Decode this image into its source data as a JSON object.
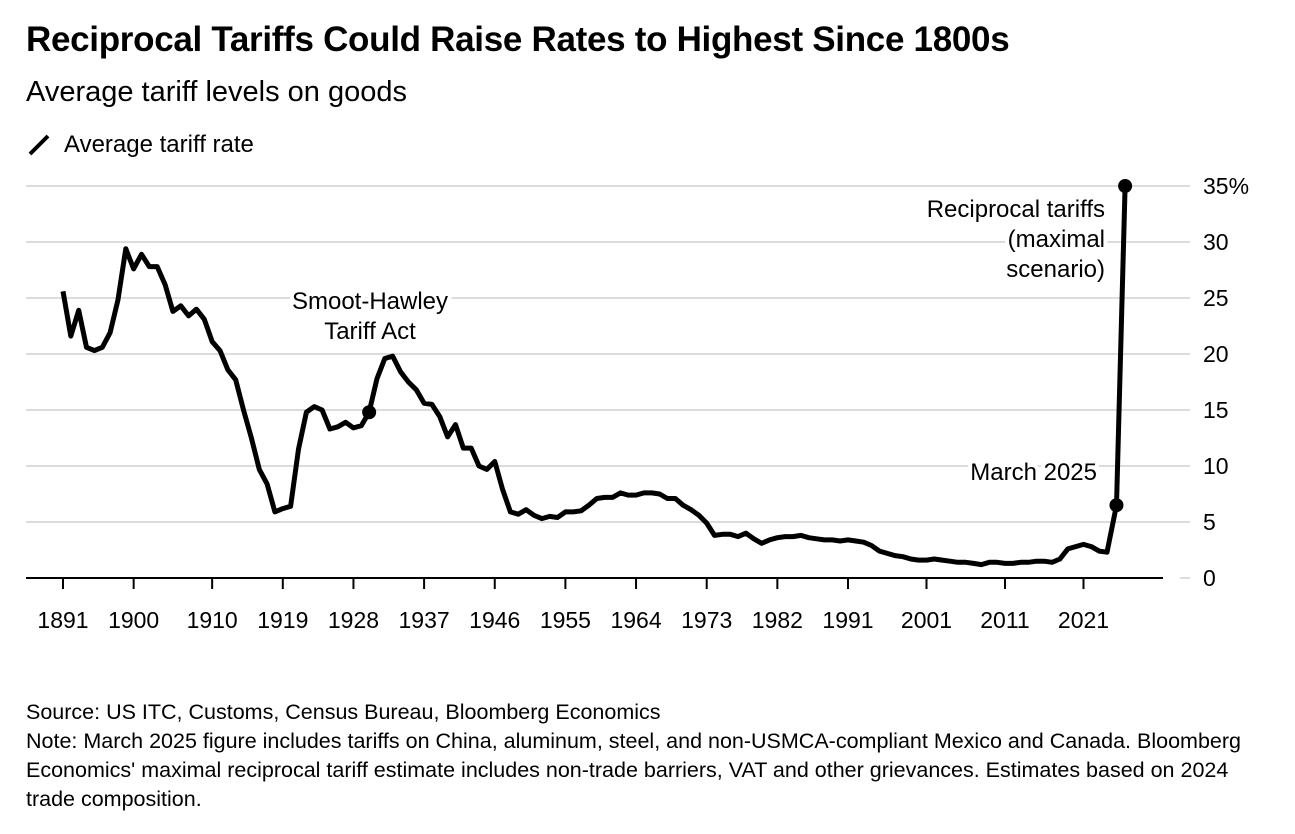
{
  "header": {
    "title": "Reciprocal Tariffs Could Raise Rates to Highest Since 1800s",
    "subtitle": "Average tariff levels on goods"
  },
  "legend": {
    "items": [
      {
        "label": "Average tariff rate",
        "icon": "line-swatch-icon",
        "color": "#000000"
      }
    ]
  },
  "footer": {
    "source": "Source: US ITC, Customs, Census Bureau, Bloomberg Economics",
    "note": "Note: March 2025 figure includes tariffs on China, aluminum, steel, and non-USMCA-compliant Mexico and Canada. Bloomberg Economics' maximal reciprocal tariff estimate includes non-trade barriers, VAT and other grievances. Estimates based on 2024 trade composition."
  },
  "chart_data": {
    "type": "line",
    "title": "Reciprocal Tariffs Could Raise Rates to Highest Since 1800s",
    "subtitle": "Average tariff levels on goods",
    "xlabel": "",
    "ylabel": "",
    "xlim": [
      1891,
      2035
    ],
    "ylim": [
      0,
      35
    ],
    "x_ticks": [
      1891,
      1900,
      1910,
      1919,
      1928,
      1937,
      1946,
      1955,
      1964,
      1973,
      1982,
      1991,
      2001,
      2011,
      2021
    ],
    "y_ticks": [
      0,
      5,
      10,
      15,
      20,
      25,
      30,
      35
    ],
    "y_tick_labels": [
      "0",
      "5",
      "10",
      "15",
      "20",
      "25",
      "30",
      "35%"
    ],
    "y_axis_side": "right",
    "grid": true,
    "legend_position": "top-left",
    "line_color": "#000000",
    "series": [
      {
        "name": "Average tariff rate",
        "x": [
          1891,
          1892,
          1893,
          1894,
          1895,
          1896,
          1897,
          1898,
          1899,
          1900,
          1901,
          1902,
          1903,
          1904,
          1905,
          1906,
          1907,
          1908,
          1909,
          1910,
          1911,
          1912,
          1913,
          1914,
          1915,
          1916,
          1917,
          1918,
          1919,
          1920,
          1921,
          1922,
          1923,
          1924,
          1925,
          1926,
          1927,
          1928,
          1929,
          1930,
          1931,
          1932,
          1933,
          1934,
          1935,
          1936,
          1937,
          1938,
          1939,
          1940,
          1941,
          1942,
          1943,
          1944,
          1945,
          1946,
          1947,
          1948,
          1949,
          1950,
          1951,
          1952,
          1953,
          1954,
          1955,
          1956,
          1957,
          1958,
          1959,
          1960,
          1961,
          1962,
          1963,
          1964,
          1965,
          1966,
          1967,
          1968,
          1969,
          1970,
          1971,
          1972,
          1973,
          1974,
          1975,
          1976,
          1977,
          1978,
          1979,
          1980,
          1981,
          1982,
          1983,
          1984,
          1985,
          1986,
          1987,
          1988,
          1989,
          1990,
          1991,
          1992,
          1993,
          1994,
          1995,
          1996,
          1997,
          1998,
          1999,
          2000,
          2001,
          2002,
          2003,
          2004,
          2005,
          2006,
          2007,
          2008,
          2009,
          2010,
          2011,
          2012,
          2013,
          2014,
          2015,
          2016,
          2017,
          2018,
          2019,
          2020,
          2021,
          2022,
          2023,
          2024,
          2025.2,
          2026.3
        ],
        "values": [
          25.6,
          21.6,
          23.9,
          20.6,
          20.3,
          20.6,
          21.9,
          24.8,
          29.4,
          27.6,
          28.9,
          27.8,
          27.8,
          26.2,
          23.8,
          24.3,
          23.4,
          24.0,
          23.1,
          21.1,
          20.3,
          18.6,
          17.7,
          15.0,
          12.5,
          9.7,
          8.4,
          5.9,
          6.2,
          6.4,
          11.5,
          14.8,
          15.3,
          15.0,
          13.3,
          13.5,
          13.9,
          13.4,
          13.6,
          14.8,
          17.8,
          19.6,
          19.8,
          18.4,
          17.5,
          16.8,
          15.6,
          15.5,
          14.4,
          12.6,
          13.7,
          11.6,
          11.6,
          10.0,
          9.7,
          10.4,
          7.9,
          5.9,
          5.7,
          6.1,
          5.6,
          5.3,
          5.5,
          5.4,
          5.9,
          5.9,
          6.0,
          6.5,
          7.1,
          7.2,
          7.2,
          7.6,
          7.4,
          7.4,
          7.6,
          7.6,
          7.5,
          7.1,
          7.1,
          6.5,
          6.1,
          5.6,
          4.9,
          3.8,
          3.9,
          3.9,
          3.7,
          4.0,
          3.5,
          3.1,
          3.4,
          3.6,
          3.7,
          3.7,
          3.8,
          3.6,
          3.5,
          3.4,
          3.4,
          3.3,
          3.4,
          3.3,
          3.2,
          2.9,
          2.4,
          2.2,
          2.0,
          1.9,
          1.7,
          1.6,
          1.6,
          1.7,
          1.6,
          1.5,
          1.4,
          1.4,
          1.3,
          1.2,
          1.4,
          1.4,
          1.3,
          1.3,
          1.4,
          1.4,
          1.5,
          1.5,
          1.4,
          1.7,
          2.6,
          2.8,
          3.0,
          2.8,
          2.4,
          2.3,
          6.5,
          35.0
        ]
      }
    ],
    "markers": [
      {
        "label": "Smoot-Hawley Tariff Act",
        "x": 1930,
        "y": 14.8
      },
      {
        "label": "March 2025",
        "x": 2025.2,
        "y": 6.5
      },
      {
        "label": "Reciprocal tariffs (maximal scenario)",
        "x": 2026.3,
        "y": 35.0
      }
    ],
    "annotations": [
      {
        "id": "smoot",
        "lines": [
          "Smoot-Hawley",
          "Tariff Act"
        ]
      },
      {
        "id": "march",
        "lines": [
          "March 2025"
        ]
      },
      {
        "id": "reciprocal",
        "lines": [
          "Reciprocal tariffs",
          "(maximal",
          "scenario)"
        ]
      }
    ]
  }
}
